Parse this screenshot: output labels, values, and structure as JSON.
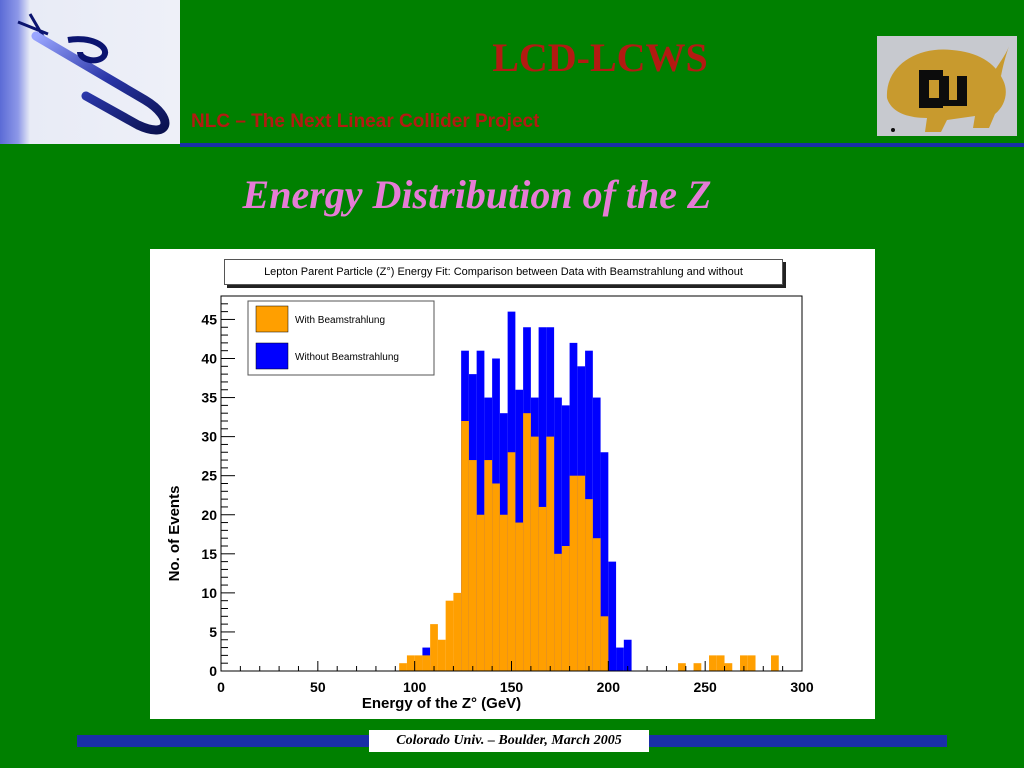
{
  "header": {
    "title": "LCD-LCWS",
    "subtitle": "NLC – The Next Linear Collider Project"
  },
  "slide": {
    "heading": "Energy Distribution of the Z"
  },
  "footer": {
    "text": "Colorado Univ. – Boulder, March 2005"
  },
  "colors": {
    "background": "#008000",
    "accent_red": "#b31a12",
    "heading_pink": "#e67cd6",
    "rule_blue": "#1a2fa8",
    "with_series": "#ff9f00",
    "without_series": "#0000ff"
  },
  "chart_data": {
    "type": "bar",
    "title": "Lepton Parent Particle (Z°) Energy Fit: Comparison between Data with Beamstrahlung and without",
    "xlabel": "Energy of the Z° (GeV)",
    "ylabel": "No. of Events",
    "xlim": [
      0,
      300
    ],
    "ylim": [
      0,
      48
    ],
    "x_ticks": [
      0,
      50,
      100,
      150,
      200,
      250,
      300
    ],
    "y_ticks": [
      0,
      5,
      10,
      15,
      20,
      25,
      30,
      35,
      40,
      45
    ],
    "bin_width": 4,
    "bin_starts": [
      92,
      96,
      100,
      104,
      108,
      112,
      116,
      120,
      124,
      128,
      132,
      136,
      140,
      144,
      148,
      152,
      156,
      160,
      164,
      168,
      172,
      176,
      180,
      184,
      188,
      192,
      196,
      200,
      204,
      208,
      212,
      236,
      244,
      252,
      256,
      260,
      268,
      272,
      284
    ],
    "legend_position": "top-left",
    "series": [
      {
        "name": "With Beamstrahlung",
        "color": "#ff9f00",
        "values": [
          1,
          2,
          2,
          2,
          6,
          4,
          9,
          10,
          32,
          27,
          20,
          27,
          24,
          20,
          28,
          19,
          33,
          30,
          21,
          30,
          15,
          16,
          25,
          25,
          22,
          17,
          7,
          0,
          0,
          0,
          0,
          1,
          1,
          2,
          2,
          1,
          2,
          2,
          2
        ]
      },
      {
        "name": "Without Beamstrahlung",
        "color": "#0000ff",
        "values": [
          0,
          0,
          0,
          3,
          0,
          0,
          0,
          0,
          41,
          38,
          41,
          35,
          40,
          33,
          46,
          36,
          44,
          35,
          44,
          44,
          35,
          34,
          42,
          39,
          41,
          35,
          28,
          14,
          3,
          4,
          0,
          0,
          0,
          0,
          0,
          0,
          0,
          0,
          0
        ]
      }
    ]
  }
}
